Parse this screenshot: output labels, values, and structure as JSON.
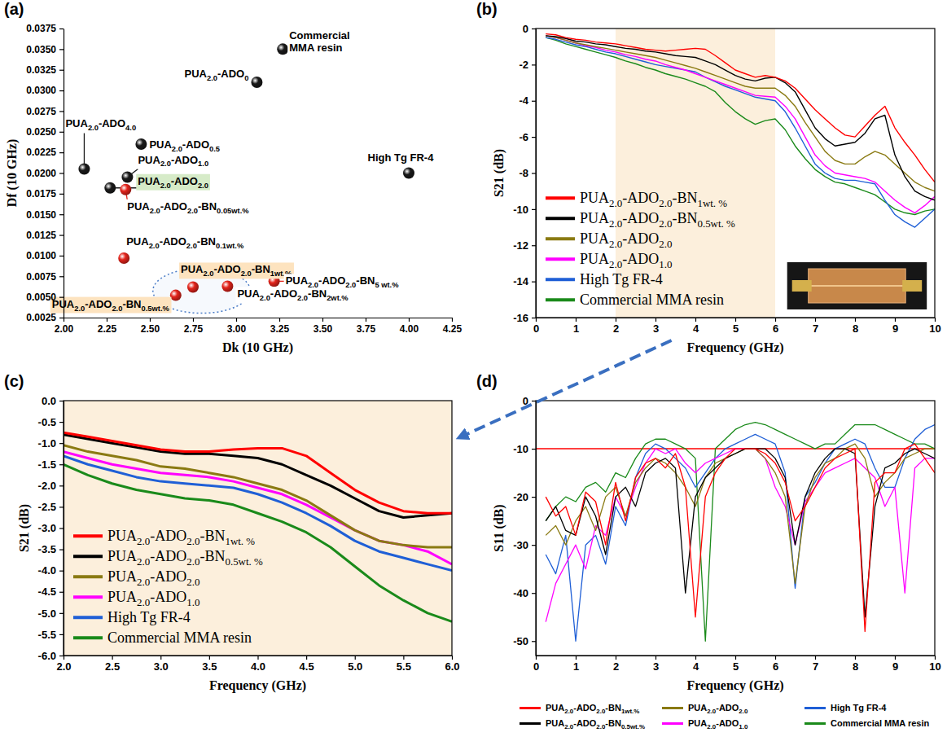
{
  "chart_data": [
    {
      "type": "scatter",
      "title": "(a)",
      "x_label": "Dk (10 GHz)",
      "y_label": "Df (10 GHz)",
      "x": [
        3.27,
        3.12,
        2.12,
        2.45,
        2.37,
        2.27,
        2.36,
        4.0,
        2.35,
        2.75,
        2.65,
        2.95,
        3.22
      ],
      "values": [
        0.035,
        0.031,
        0.0205,
        0.0235,
        0.0195,
        0.0182,
        0.018,
        0.02,
        0.0097,
        0.0062,
        0.0052,
        0.0063,
        0.0069
      ],
      "colors": [
        "#1a1a1a",
        "#1a1a1a",
        "#1a1a1a",
        "#1a1a1a",
        "#1a1a1a",
        "#1a1a1a",
        "#e3241b",
        "#1a1a1a",
        "#e3241b",
        "#e3241b",
        "#e3241b",
        "#e3241b",
        "#e3241b"
      ],
      "annotations": [
        "Commercial MMA resin",
        "PUA2.0-ADO0",
        "PUA2.0-ADO4.0",
        "PUA2.0-ADO0.5",
        "PUA2.0-ADO1.0",
        "PUA2.0-ADO2.0",
        "PUA2.0-ADO2.0-BN0.05wt.%",
        "High Tg FR-4",
        "PUA2.0-ADO2.0-BN0.1wt.%",
        "PUA2.0-ADO2.0-BN1wt.%",
        "PUA2.0-ADO2.0-BN0.5wt.%",
        "PUA2.0-ADO2.0-BN2wt.%",
        "PUA2.0-ADO2.0-BN5 wt.%"
      ],
      "xlim": [
        2,
        4.25
      ],
      "xticks": [
        {
          "value": 2,
          "label": "2.00"
        },
        2.25,
        {
          "value": 2.5,
          "label": "2.50"
        },
        2.75,
        {
          "value": 3,
          "label": "3.00"
        },
        3.25,
        {
          "value": 3.5,
          "label": "3.50"
        },
        3.75,
        {
          "value": 4,
          "label": "4.00"
        },
        4.25
      ],
      "ylim": [
        0.0025,
        0.0375
      ],
      "yticks": [
        0.0025,
        {
          "value": 0.005,
          "label": "0.0050"
        },
        0.0075,
        {
          "value": 0.01,
          "label": "0.0100"
        },
        0.0125,
        {
          "value": 0.015,
          "label": "0.0150"
        },
        0.0175,
        {
          "value": 0.02,
          "label": "0.0200"
        },
        0.0225,
        {
          "value": 0.025,
          "label": "0.0250"
        },
        0.0275,
        {
          "value": 0.03,
          "label": "0.0300"
        },
        0.0325,
        {
          "value": 0.035,
          "label": "0.0350"
        },
        0.0375
      ],
      "grid": false
    },
    {
      "type": "line",
      "title": "(b)",
      "x_label": "Frequency (GHz)",
      "y_label": "S21 (dB)",
      "x": [
        0.25,
        0.5,
        0.75,
        1,
        1.25,
        1.5,
        1.75,
        2,
        2.25,
        2.5,
        2.75,
        3,
        3.25,
        3.5,
        3.75,
        4,
        4.25,
        4.5,
        4.75,
        5,
        5.25,
        5.5,
        5.75,
        6,
        6.25,
        6.5,
        6.75,
        7,
        7.25,
        7.5,
        7.75,
        8,
        8.25,
        8.5,
        8.75,
        9,
        9.25,
        9.5,
        9.75,
        10
      ],
      "series": [
        {
          "name": "PUA2.0-ADO2.0-BN1wt. %",
          "color": "#ff0000",
          "values": [
            -0.3,
            -0.35,
            -0.5,
            -0.6,
            -0.65,
            -0.75,
            -0.8,
            -0.85,
            -0.95,
            -1.05,
            -1.15,
            -1.2,
            -1.25,
            -1.2,
            -1.15,
            -1.1,
            -1.15,
            -1.5,
            -1.9,
            -2.3,
            -2.5,
            -2.7,
            -2.6,
            -2.7,
            -2.9,
            -3.3,
            -3.9,
            -4.5,
            -5.0,
            -5.5,
            -5.9,
            -6.0,
            -5.4,
            -4.8,
            -4.3,
            -5.5,
            -6.3,
            -7.0,
            -7.8,
            -8.5
          ]
        },
        {
          "name": "PUA2.0-ADO2.0-BN0.5wt. %",
          "color": "#000000",
          "values": [
            -0.4,
            -0.45,
            -0.55,
            -0.7,
            -0.75,
            -0.85,
            -0.9,
            -1.0,
            -1.1,
            -1.15,
            -1.25,
            -1.3,
            -1.4,
            -1.5,
            -1.55,
            -1.6,
            -1.8,
            -2.0,
            -2.3,
            -2.6,
            -2.8,
            -2.9,
            -2.75,
            -2.7,
            -3.0,
            -3.5,
            -4.5,
            -5.5,
            -6.1,
            -6.5,
            -6.4,
            -6.3,
            -5.8,
            -5.0,
            -4.8,
            -7.0,
            -8.2,
            -9.0,
            -9.3,
            -9.5
          ]
        },
        {
          "name": "PUA2.0-ADO2.0",
          "color": "#8a7a12",
          "values": [
            -0.4,
            -0.5,
            -0.65,
            -0.8,
            -0.9,
            -1.0,
            -1.1,
            -1.2,
            -1.3,
            -1.4,
            -1.5,
            -1.6,
            -1.75,
            -1.9,
            -2.05,
            -2.2,
            -2.4,
            -2.6,
            -2.8,
            -3.0,
            -3.2,
            -3.3,
            -3.3,
            -3.3,
            -3.7,
            -4.3,
            -5.2,
            -6.0,
            -6.8,
            -7.3,
            -7.5,
            -7.5,
            -7.1,
            -6.8,
            -7.0,
            -7.5,
            -8.0,
            -8.5,
            -8.8,
            -9.0
          ]
        },
        {
          "name": "PUA2.0-ADO1.0",
          "color": "#ff00ff",
          "values": [
            -0.4,
            -0.5,
            -0.65,
            -0.8,
            -0.95,
            -1.05,
            -1.2,
            -1.3,
            -1.45,
            -1.55,
            -1.7,
            -1.8,
            -2.0,
            -2.15,
            -2.3,
            -2.5,
            -2.7,
            -2.9,
            -3.1,
            -3.3,
            -3.5,
            -3.7,
            -3.75,
            -3.8,
            -4.3,
            -5.0,
            -6.0,
            -7.0,
            -7.6,
            -8.0,
            -8.1,
            -8.2,
            -8.3,
            -8.5,
            -9.0,
            -9.5,
            -9.9,
            -10.2,
            -9.8,
            -9.3
          ]
        },
        {
          "name": "High Tg FR-4",
          "color": "#1f5fd6",
          "values": [
            -0.5,
            -0.6,
            -0.75,
            -0.9,
            -1.0,
            -1.15,
            -1.3,
            -1.4,
            -1.55,
            -1.7,
            -1.85,
            -2.0,
            -2.1,
            -2.2,
            -2.3,
            -2.4,
            -2.7,
            -2.95,
            -3.2,
            -3.4,
            -3.6,
            -3.8,
            -3.9,
            -4.0,
            -4.6,
            -5.5,
            -6.5,
            -7.5,
            -8.0,
            -8.3,
            -8.4,
            -8.4,
            -8.5,
            -8.6,
            -9.5,
            -10.3,
            -10.7,
            -11.0,
            -10.5,
            -10.0
          ]
        },
        {
          "name": "Commercial MMA resin",
          "color": "#1a8a1a",
          "values": [
            -0.5,
            -0.65,
            -0.85,
            -1.0,
            -1.15,
            -1.3,
            -1.45,
            -1.6,
            -1.8,
            -1.95,
            -2.15,
            -2.3,
            -2.5,
            -2.65,
            -2.8,
            -3.0,
            -3.2,
            -3.5,
            -4.1,
            -4.6,
            -5.0,
            -5.3,
            -5.1,
            -5.0,
            -5.6,
            -6.5,
            -7.2,
            -7.8,
            -8.2,
            -8.5,
            -8.6,
            -8.8,
            -9.0,
            -9.2,
            -9.6,
            -10.0,
            -10.2,
            -10.3,
            -10.1,
            -10.0
          ]
        }
      ],
      "highlight": [
        2,
        6
      ],
      "xlim": [
        0,
        10
      ],
      "xticks": [
        0,
        1,
        2,
        3,
        4,
        5,
        6,
        7,
        8,
        9,
        10
      ],
      "ylim": [
        -16,
        0
      ],
      "yticks": [
        -16,
        -14,
        -12,
        -10,
        -8,
        -6,
        -4,
        -2,
        0
      ],
      "grid": false,
      "legend": "lower left"
    },
    {
      "type": "line",
      "title": "(c)",
      "x_label": "Frequency (GHz)",
      "y_label": "S21 (dB)",
      "x": [
        2,
        2.25,
        2.5,
        2.75,
        3,
        3.25,
        3.5,
        3.75,
        4,
        4.25,
        4.5,
        4.75,
        5,
        5.25,
        5.5,
        5.75,
        6
      ],
      "series": [
        {
          "name": "PUA2.0-ADO2.0-BN1wt. %",
          "color": "#ff0000",
          "values": [
            -0.75,
            -0.85,
            -0.95,
            -1.05,
            -1.15,
            -1.2,
            -1.2,
            -1.15,
            -1.12,
            -1.12,
            -1.3,
            -1.7,
            -2.1,
            -2.4,
            -2.6,
            -2.65,
            -2.65
          ]
        },
        {
          "name": "PUA2.0-ADO2.0-BN0.5wt. %",
          "color": "#000000",
          "values": [
            -0.8,
            -0.9,
            -1.0,
            -1.1,
            -1.2,
            -1.25,
            -1.25,
            -1.3,
            -1.35,
            -1.5,
            -1.75,
            -2.0,
            -2.3,
            -2.6,
            -2.75,
            -2.7,
            -2.65
          ]
        },
        {
          "name": "PUA2.0-ADO2.0",
          "color": "#8a7a12",
          "values": [
            -1.05,
            -1.2,
            -1.3,
            -1.4,
            -1.55,
            -1.6,
            -1.7,
            -1.8,
            -1.95,
            -2.1,
            -2.35,
            -2.7,
            -3.05,
            -3.3,
            -3.4,
            -3.45,
            -3.45
          ]
        },
        {
          "name": "PUA2.0-ADO1.0",
          "color": "#ff00ff",
          "values": [
            -1.2,
            -1.35,
            -1.5,
            -1.6,
            -1.7,
            -1.75,
            -1.8,
            -1.9,
            -2.05,
            -2.2,
            -2.45,
            -2.75,
            -3.05,
            -3.3,
            -3.4,
            -3.55,
            -3.85
          ]
        },
        {
          "name": "High Tg FR-4",
          "color": "#1f5fd6",
          "values": [
            -1.3,
            -1.5,
            -1.65,
            -1.8,
            -1.9,
            -1.95,
            -2.0,
            -2.05,
            -2.2,
            -2.4,
            -2.65,
            -2.95,
            -3.3,
            -3.55,
            -3.7,
            -3.85,
            -4.0
          ]
        },
        {
          "name": "Commercial MMA resin",
          "color": "#1a8a1a",
          "values": [
            -1.5,
            -1.75,
            -1.95,
            -2.1,
            -2.2,
            -2.3,
            -2.35,
            -2.45,
            -2.65,
            -2.85,
            -3.1,
            -3.45,
            -3.9,
            -4.35,
            -4.7,
            -5.0,
            -5.2
          ]
        }
      ],
      "highlight": [
        2,
        6
      ],
      "xlim": [
        2,
        6
      ],
      "xticks": [
        {
          "value": 2,
          "label": "2.0"
        },
        2.5,
        {
          "value": 3,
          "label": "3.0"
        },
        3.5,
        {
          "value": 4,
          "label": "4.0"
        },
        4.5,
        {
          "value": 5,
          "label": "5.0"
        },
        5.5,
        {
          "value": 6,
          "label": "6.0"
        }
      ],
      "ylim": [
        -6,
        0
      ],
      "yticks": [
        {
          "value": 0,
          "label": "0.0"
        },
        -0.5,
        {
          "value": -1,
          "label": "-1.0"
        },
        -1.5,
        {
          "value": -2,
          "label": "-2.0"
        },
        -2.5,
        {
          "value": -3,
          "label": "-3.0"
        },
        -3.5,
        {
          "value": -4,
          "label": "-4.0"
        },
        -4.5,
        {
          "value": -5,
          "label": "-5.0"
        },
        -5.5,
        {
          "value": -6,
          "label": "-6.0"
        }
      ],
      "grid": false,
      "legend": "lower left"
    },
    {
      "type": "line",
      "title": "(d)",
      "x_label": "Frequency (GHz)",
      "y_label": "S11 (dB)",
      "x": [
        0.25,
        0.5,
        0.75,
        1,
        1.25,
        1.5,
        1.75,
        2,
        2.25,
        2.5,
        2.75,
        3,
        3.25,
        3.5,
        3.75,
        4,
        4.25,
        4.5,
        4.75,
        5,
        5.25,
        5.5,
        5.75,
        6,
        6.25,
        6.5,
        6.75,
        7,
        7.25,
        7.5,
        7.75,
        8,
        8.25,
        8.5,
        8.75,
        9,
        9.25,
        9.5,
        9.75,
        10
      ],
      "series": [
        {
          "name": "PUA2.0-ADO2.0-BN1wt.%",
          "color": "#ff0000",
          "values": [
            -20,
            -24,
            -22,
            -28,
            -19,
            -21,
            -30,
            -17,
            -25,
            -16,
            -13,
            -12,
            -14,
            -11,
            -18,
            -45,
            -20,
            -15,
            -12,
            -10,
            -10,
            -10,
            -11,
            -13,
            -17,
            -25,
            -22,
            -18,
            -14,
            -12,
            -11,
            -10,
            -48,
            -17,
            -15,
            -15,
            -10,
            -9,
            -12,
            -15
          ]
        },
        {
          "name": "PUA2.0-ADO2.0-BN0.5wt.%",
          "color": "#000000",
          "values": [
            -25,
            -22,
            -27,
            -28,
            -20,
            -24,
            -32,
            -20,
            -18,
            -22,
            -15,
            -13,
            -12,
            -14,
            -40,
            -20,
            -16,
            -14,
            -12,
            -11,
            -10,
            -10,
            -10,
            -12,
            -16,
            -30,
            -20,
            -15,
            -12,
            -10,
            -10,
            -11,
            -45,
            -22,
            -14,
            -13,
            -11,
            -10,
            -11,
            -12
          ]
        },
        {
          "name": "PUA2.0-ADO2.0",
          "color": "#8a7a12",
          "values": [
            -28,
            -26,
            -30,
            -25,
            -22,
            -27,
            -20,
            -18,
            -24,
            -17,
            -14,
            -12,
            -13,
            -15,
            -18,
            -22,
            -16,
            -13,
            -12,
            -11,
            -10,
            -10,
            -12,
            -15,
            -20,
            -38,
            -22,
            -16,
            -13,
            -12,
            -10,
            -9,
            -12,
            -20,
            -17,
            -15,
            -12,
            -11,
            -10,
            -10
          ]
        },
        {
          "name": "PUA2.0-ADO1.0",
          "color": "#ff00ff",
          "values": [
            -46,
            -38,
            -34,
            -30,
            -35,
            -26,
            -28,
            -20,
            -24,
            -18,
            -13,
            -10,
            -11,
            -10,
            -13,
            -15,
            -13,
            -12,
            -11,
            -10,
            -10,
            -10,
            -12,
            -18,
            -22,
            -30,
            -21,
            -18,
            -15,
            -14,
            -13,
            -12,
            -14,
            -16,
            -22,
            -18,
            -40,
            -14,
            -12,
            -12
          ]
        },
        {
          "name": "High Tg FR-4",
          "color": "#1f5fd6",
          "values": [
            -32,
            -36,
            -28,
            -50,
            -30,
            -28,
            -34,
            -22,
            -26,
            -16,
            -11,
            -9,
            -10,
            -12,
            -14,
            -18,
            -15,
            -12,
            -10,
            -9,
            -8,
            -7,
            -8,
            -9,
            -15,
            -39,
            -20,
            -17,
            -13,
            -10,
            -9,
            -8,
            -9,
            -14,
            -18,
            -18,
            -12,
            -8,
            -6,
            -5
          ]
        },
        {
          "name": "Commercial MMA resin",
          "color": "#1a8a1a",
          "values": [
            -25,
            -22,
            -20,
            -21,
            -18,
            -17,
            -19,
            -15,
            -16,
            -12,
            -9,
            -8,
            -8,
            -9,
            -10,
            -12,
            -50,
            -10,
            -8,
            -6,
            -5,
            -4.5,
            -5,
            -6,
            -7,
            -8,
            -9,
            -10,
            -9,
            -9,
            -7,
            -5,
            -5,
            -5,
            -6,
            -7,
            -8,
            -9,
            -9,
            -10
          ]
        }
      ],
      "reference_line": -10,
      "xlim": [
        0,
        10
      ],
      "xticks": [
        0,
        1,
        2,
        3,
        4,
        5,
        6,
        7,
        8,
        9,
        10
      ],
      "ylim": [
        -53,
        0
      ],
      "yticks": [
        -50,
        -40,
        -30,
        -20,
        -10,
        0
      ],
      "grid": false,
      "legend": "bottom"
    }
  ]
}
